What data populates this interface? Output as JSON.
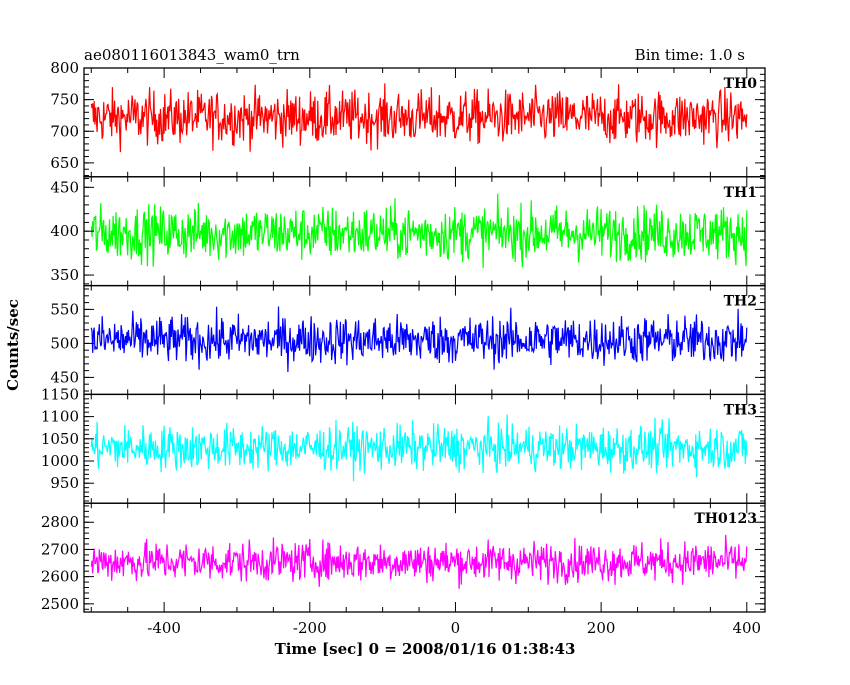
{
  "header": {
    "left": "ae080116013843_wam0_trn",
    "right": "Bin time: 1.0 s"
  },
  "chart_data": {
    "type": "line",
    "title": "ae080116013843_wam0_trn",
    "bin_time": "Bin time: 1.0 s",
    "xlabel": "Time [sec] 0 = 2008/01/16 01:38:43",
    "ylabel": "Counts/sec",
    "xlim": [
      -510,
      425
    ],
    "x_ticks": [
      -400,
      -200,
      0,
      200,
      400
    ],
    "x_data_range": [
      -500,
      400
    ],
    "grid": false,
    "series": [
      {
        "name": "TH0",
        "color": "#ff0000",
        "ylim": [
          628,
          800
        ],
        "y_ticks": [
          650,
          700,
          750,
          800
        ],
        "mean": 722,
        "noise": 30
      },
      {
        "name": "TH1",
        "color": "#00ff00",
        "ylim": [
          338,
          462
        ],
        "y_ticks": [
          350,
          400,
          450
        ],
        "mean": 398,
        "noise": 22
      },
      {
        "name": "TH2",
        "color": "#0000ff",
        "ylim": [
          425,
          585
        ],
        "y_ticks": [
          450,
          500,
          550
        ],
        "mean": 505,
        "noise": 25
      },
      {
        "name": "TH3",
        "color": "#00ffff",
        "ylim": [
          905,
          1150
        ],
        "y_ticks": [
          950,
          1000,
          1050,
          1100,
          1150
        ],
        "mean": 1030,
        "noise": 36
      },
      {
        "name": "TH0123",
        "color": "#ff00ff",
        "ylim": [
          2470,
          2870
        ],
        "y_ticks": [
          2500,
          2600,
          2700,
          2800
        ],
        "mean": 2655,
        "noise": 52
      }
    ]
  }
}
